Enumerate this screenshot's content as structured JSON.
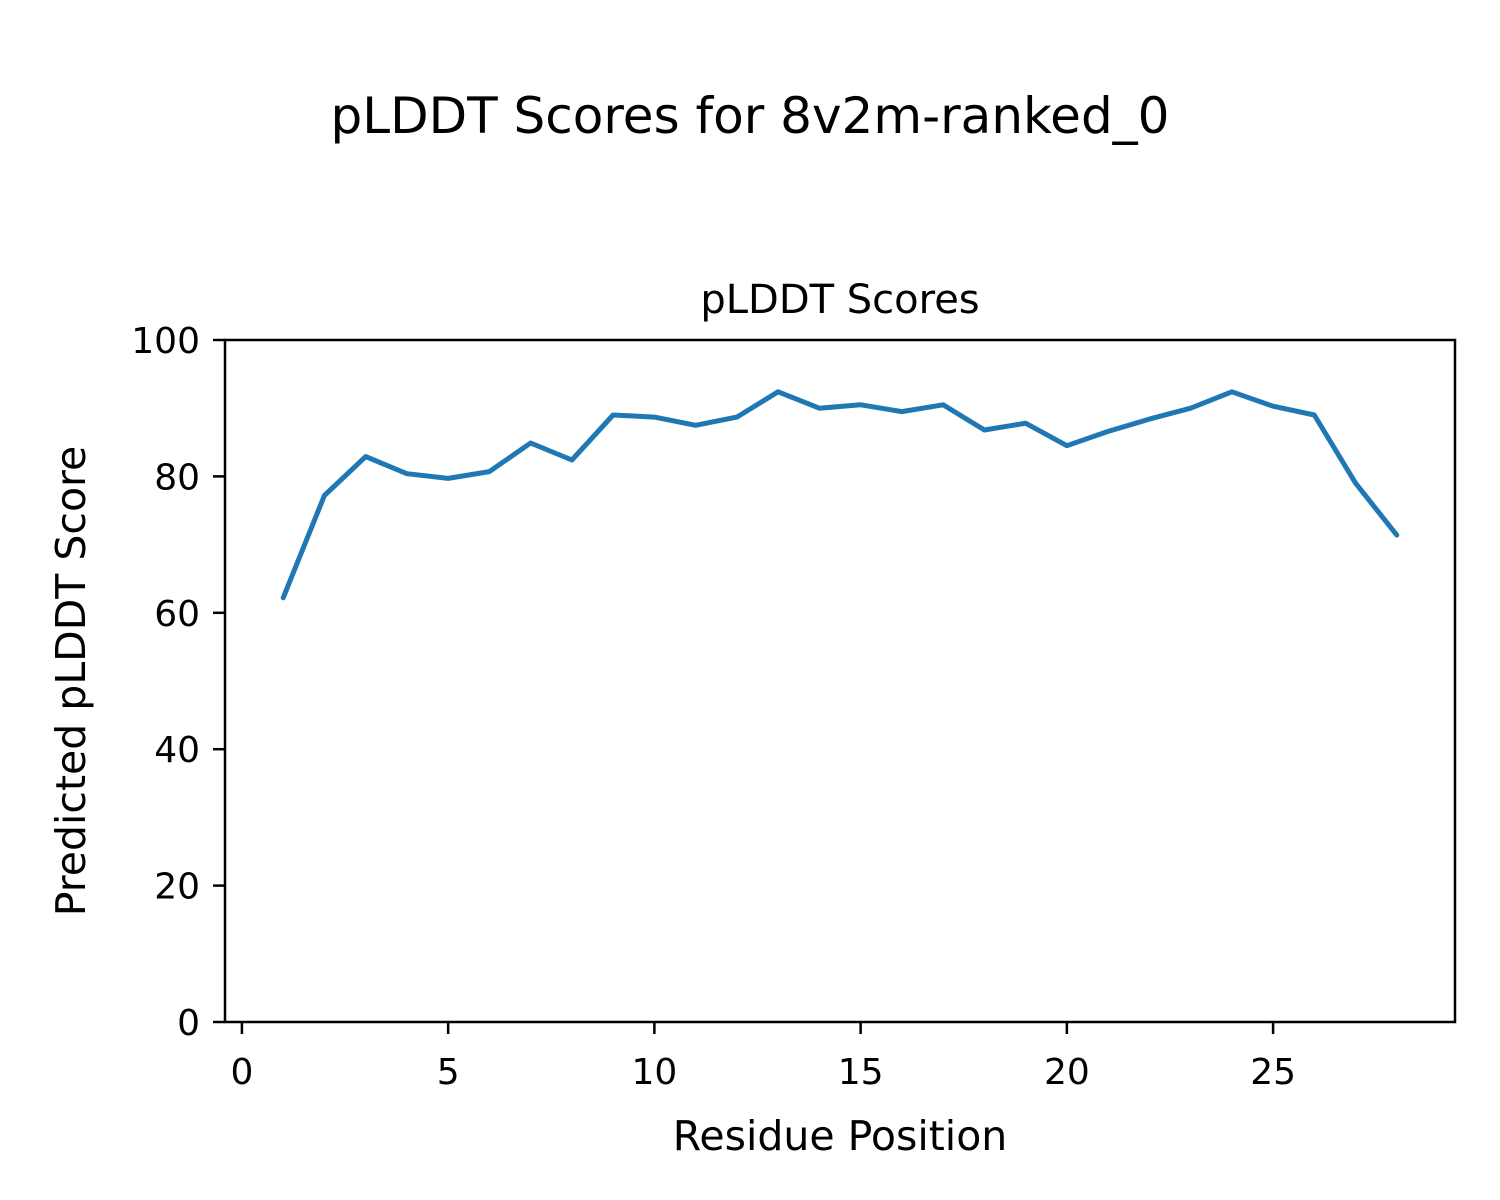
{
  "figure_title": "pLDDT Scores for 8v2m-ranked_0",
  "chart_data": {
    "type": "line",
    "title": "pLDDT Scores",
    "xlabel": "Residue Position",
    "ylabel": "Predicted pLDDT Score",
    "x": [
      1,
      2,
      3,
      4,
      5,
      6,
      7,
      8,
      9,
      10,
      11,
      12,
      13,
      14,
      15,
      16,
      17,
      18,
      19,
      20,
      21,
      22,
      23,
      24,
      25,
      26,
      27,
      28
    ],
    "y": [
      62.2,
      77.2,
      82.9,
      80.4,
      79.7,
      80.7,
      84.9,
      82.4,
      89.0,
      88.7,
      87.5,
      88.7,
      92.4,
      90.0,
      90.5,
      89.5,
      90.5,
      86.8,
      87.8,
      84.5,
      86.6,
      88.4,
      90.0,
      92.4,
      90.3,
      89.0,
      79.0,
      71.4
    ],
    "x_ticks": [
      0,
      5,
      10,
      15,
      20,
      25
    ],
    "y_ticks": [
      0,
      20,
      40,
      60,
      80,
      100
    ],
    "xlim": [
      -0.41,
      29.41
    ],
    "ylim": [
      0,
      100
    ],
    "grid": false,
    "legend_position": "none",
    "line_color": "#1f77b4",
    "axis_color": "#000000"
  }
}
